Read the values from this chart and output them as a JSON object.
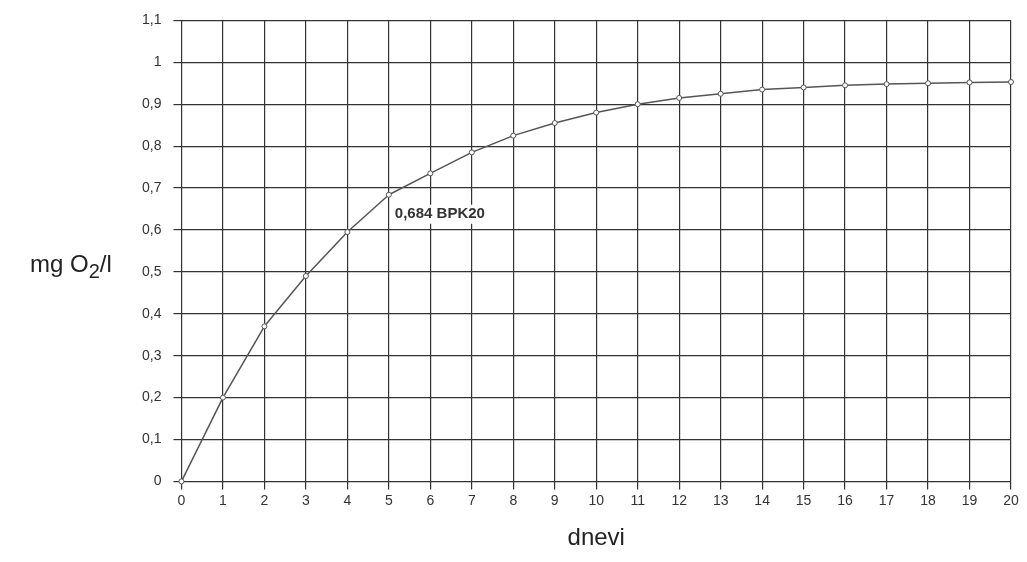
{
  "chart_data": {
    "type": "line",
    "xlabel": "dnevi",
    "ylabel": "mg O$_{2}$/l",
    "x": [
      0,
      1,
      2,
      3,
      4,
      5,
      6,
      7,
      8,
      9,
      10,
      11,
      12,
      13,
      14,
      15,
      16,
      17,
      18,
      19,
      20
    ],
    "series": [
      {
        "color": "#555555",
        "values": [
          0,
          0.2,
          0.37,
          0.49,
          0.595,
          0.684,
          0.735,
          0.785,
          0.825,
          0.855,
          0.88,
          0.9,
          0.915,
          0.925,
          0.935,
          0.94,
          0.945,
          0.948,
          0.95,
          0.952,
          0.953
        ]
      }
    ],
    "xlim": [
      0,
      20
    ],
    "xticks": [
      0,
      1,
      2,
      3,
      4,
      5,
      6,
      7,
      8,
      9,
      10,
      11,
      12,
      13,
      14,
      15,
      16,
      17,
      18,
      19,
      20
    ],
    "ylim": [
      0,
      1.1
    ],
    "yticks": [
      0,
      {
        "value": 0.1,
        "label": "0,1"
      },
      {
        "value": 0.2,
        "label": "0,2"
      },
      {
        "value": 0.3,
        "label": "0,3"
      },
      {
        "value": 0.4,
        "label": "0,4"
      },
      {
        "value": 0.5,
        "label": "0,5"
      },
      {
        "value": 0.6,
        "label": "0,6"
      },
      {
        "value": 0.7,
        "label": "0,7"
      },
      {
        "value": 0.8,
        "label": "0,8"
      },
      {
        "value": 0.9,
        "label": "0,9"
      },
      1,
      {
        "value": 1.1,
        "label": "1,1"
      }
    ],
    "annotations": [
      {
        "text": "0,684 BPK20",
        "x": 5,
        "y": 0.684
      }
    ],
    "grid": true,
    "marker": "circle",
    "line_style": "solid",
    "legend": false
  }
}
